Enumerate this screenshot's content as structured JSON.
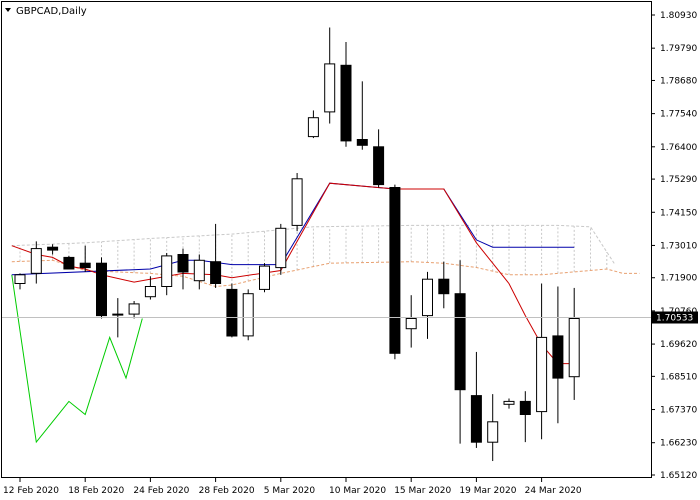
{
  "window": {
    "title": "GBPCAD,Daily",
    "menu_icon": "triangle-down-icon"
  },
  "colors": {
    "background": "#ffffff",
    "axis": "#000000",
    "grid": "#c0c0c0",
    "bull_body": "#ffffff",
    "bear_body": "#000000",
    "candle_outline": "#000000",
    "tenkan": "#cc0000",
    "kijun": "#0000aa",
    "chikou": "#00cc00",
    "senkou_a": "#e8a070",
    "senkou_b": "#c8c8c8",
    "price_tag_bg": "#000000"
  },
  "chart_data": {
    "type": "candlestick",
    "symbol": "GBPCAD",
    "timeframe": "Daily",
    "indicator": "Ichimoku Kinko Hyo",
    "ylim": [
      1.6512,
      1.8093
    ],
    "y_ticks": [
      "1.80930",
      "1.79790",
      "1.78680",
      "1.77540",
      "1.76400",
      "1.75290",
      "1.74150",
      "1.73010",
      "1.71900",
      "1.70760",
      "1.69620",
      "1.68510",
      "1.67370",
      "1.66230",
      "1.65120"
    ],
    "x_ticks": [
      {
        "index": 0,
        "label": "12 Feb 2020"
      },
      {
        "index": 4,
        "label": "18 Feb 2020"
      },
      {
        "index": 8,
        "label": "24 Feb 2020"
      },
      {
        "index": 12,
        "label": "28 Feb 2020"
      },
      {
        "index": 16,
        "label": "5 Mar 2020"
      },
      {
        "index": 20,
        "label": "10 Mar 2020"
      },
      {
        "index": 24,
        "label": "15 Mar 2020"
      },
      {
        "index": 28,
        "label": "19 Mar 2020"
      },
      {
        "index": 32,
        "label": "24 Mar 2020"
      }
    ],
    "current_price": "1.70533",
    "current_price_value": 1.70533,
    "candles": [
      {
        "o": 1.717,
        "h": 1.7205,
        "l": 1.715,
        "c": 1.72
      },
      {
        "o": 1.7205,
        "h": 1.7315,
        "l": 1.717,
        "c": 1.729
      },
      {
        "o": 1.7295,
        "h": 1.7305,
        "l": 1.727,
        "c": 1.7285
      },
      {
        "o": 1.726,
        "h": 1.7265,
        "l": 1.722,
        "c": 1.722
      },
      {
        "o": 1.724,
        "h": 1.73,
        "l": 1.721,
        "c": 1.7225
      },
      {
        "o": 1.724,
        "h": 1.726,
        "l": 1.705,
        "c": 1.706
      },
      {
        "o": 1.7065,
        "h": 1.712,
        "l": 1.6985,
        "c": 1.7065
      },
      {
        "o": 1.7065,
        "h": 1.711,
        "l": 1.705,
        "c": 1.71
      },
      {
        "o": 1.7125,
        "h": 1.7195,
        "l": 1.7115,
        "c": 1.716
      },
      {
        "o": 1.716,
        "h": 1.7275,
        "l": 1.713,
        "c": 1.7265
      },
      {
        "o": 1.727,
        "h": 1.729,
        "l": 1.715,
        "c": 1.721
      },
      {
        "o": 1.718,
        "h": 1.727,
        "l": 1.715,
        "c": 1.725
      },
      {
        "o": 1.7245,
        "h": 1.7375,
        "l": 1.7155,
        "c": 1.717
      },
      {
        "o": 1.715,
        "h": 1.717,
        "l": 1.6985,
        "c": 1.699
      },
      {
        "o": 1.699,
        "h": 1.715,
        "l": 1.6975,
        "c": 1.7135
      },
      {
        "o": 1.715,
        "h": 1.724,
        "l": 1.714,
        "c": 1.723
      },
      {
        "o": 1.7225,
        "h": 1.7375,
        "l": 1.72,
        "c": 1.736
      },
      {
        "o": 1.737,
        "h": 1.755,
        "l": 1.735,
        "c": 1.753
      },
      {
        "o": 1.7675,
        "h": 1.7765,
        "l": 1.767,
        "c": 1.774
      },
      {
        "o": 1.776,
        "h": 1.805,
        "l": 1.772,
        "c": 1.7925
      },
      {
        "o": 1.792,
        "h": 1.8,
        "l": 1.764,
        "c": 1.766
      },
      {
        "o": 1.7665,
        "h": 1.7865,
        "l": 1.763,
        "c": 1.7645
      },
      {
        "o": 1.764,
        "h": 1.77,
        "l": 1.75,
        "c": 1.751
      },
      {
        "o": 1.75,
        "h": 1.751,
        "l": 1.691,
        "c": 1.693
      },
      {
        "o": 1.7015,
        "h": 1.713,
        "l": 1.695,
        "c": 1.705
      },
      {
        "o": 1.706,
        "h": 1.721,
        "l": 1.698,
        "c": 1.7185
      },
      {
        "o": 1.7185,
        "h": 1.7245,
        "l": 1.7085,
        "c": 1.7135
      },
      {
        "o": 1.7135,
        "h": 1.725,
        "l": 1.662,
        "c": 1.6805
      },
      {
        "o": 1.6785,
        "h": 1.6935,
        "l": 1.6605,
        "c": 1.6625
      },
      {
        "o": 1.6625,
        "h": 1.679,
        "l": 1.656,
        "c": 1.6695
      },
      {
        "o": 1.6755,
        "h": 1.6775,
        "l": 1.674,
        "c": 1.6765
      },
      {
        "o": 1.6765,
        "h": 1.68,
        "l": 1.6625,
        "c": 1.672
      },
      {
        "o": 1.673,
        "h": 1.717,
        "l": 1.6635,
        "c": 1.6985
      },
      {
        "o": 1.699,
        "h": 1.716,
        "l": 1.669,
        "c": 1.6845
      },
      {
        "o": 1.685,
        "h": 1.7155,
        "l": 1.677,
        "c": 1.705
      }
    ],
    "kijun_sen": [
      {
        "x": -0.5,
        "y": 1.72
      },
      {
        "x": 8,
        "y": 1.722
      },
      {
        "x": 10,
        "y": 1.725
      },
      {
        "x": 11,
        "y": 1.725
      },
      {
        "x": 13,
        "y": 1.7235
      },
      {
        "x": 16,
        "y": 1.7235
      },
      {
        "x": 19,
        "y": 1.7515
      },
      {
        "x": 23,
        "y": 1.7495
      },
      {
        "x": 26,
        "y": 1.7495
      },
      {
        "x": 28,
        "y": 1.732
      },
      {
        "x": 29,
        "y": 1.7295
      },
      {
        "x": 34,
        "y": 1.7295
      }
    ],
    "tenkan_sen": [
      {
        "x": -0.5,
        "y": 1.73
      },
      {
        "x": 1,
        "y": 1.727
      },
      {
        "x": 2,
        "y": 1.726
      },
      {
        "x": 3,
        "y": 1.723
      },
      {
        "x": 4,
        "y": 1.722
      },
      {
        "x": 5,
        "y": 1.72
      },
      {
        "x": 7,
        "y": 1.7175
      },
      {
        "x": 10,
        "y": 1.7205
      },
      {
        "x": 12,
        "y": 1.72
      },
      {
        "x": 13,
        "y": 1.719
      },
      {
        "x": 16,
        "y": 1.7215
      },
      {
        "x": 19,
        "y": 1.7515
      },
      {
        "x": 23,
        "y": 1.7495
      },
      {
        "x": 26,
        "y": 1.7495
      },
      {
        "x": 28,
        "y": 1.731
      },
      {
        "x": 30,
        "y": 1.717
      },
      {
        "x": 31,
        "y": 1.706
      },
      {
        "x": 32,
        "y": 1.696
      },
      {
        "x": 33,
        "y": 1.6895
      },
      {
        "x": 34,
        "y": 1.6895
      }
    ],
    "chikou_span": [
      {
        "x": -0.5,
        "y": 1.72
      },
      {
        "x": 1,
        "y": 1.6625
      },
      {
        "x": 3,
        "y": 1.6765
      },
      {
        "x": 4,
        "y": 1.672
      },
      {
        "x": 5.5,
        "y": 1.6985
      },
      {
        "x": 6.5,
        "y": 1.6845
      },
      {
        "x": 7.5,
        "y": 1.705
      }
    ],
    "senkou_span_a": [
      {
        "x": -0.5,
        "y": 1.7245
      },
      {
        "x": 2,
        "y": 1.725
      },
      {
        "x": 4,
        "y": 1.7215
      },
      {
        "x": 8,
        "y": 1.7205
      },
      {
        "x": 10,
        "y": 1.7195
      },
      {
        "x": 12,
        "y": 1.716
      },
      {
        "x": 13,
        "y": 1.7165
      },
      {
        "x": 16,
        "y": 1.7205
      },
      {
        "x": 19,
        "y": 1.724
      },
      {
        "x": 24,
        "y": 1.7245
      },
      {
        "x": 26,
        "y": 1.724
      },
      {
        "x": 28,
        "y": 1.7225
      },
      {
        "x": 30,
        "y": 1.72
      },
      {
        "x": 32,
        "y": 1.72
      },
      {
        "x": 34,
        "y": 1.721
      },
      {
        "x": 36,
        "y": 1.722
      },
      {
        "x": 37,
        "y": 1.7205
      },
      {
        "x": 38,
        "y": 1.7205
      }
    ],
    "senkou_span_b": [
      {
        "x": -0.5,
        "y": 1.73
      },
      {
        "x": 4,
        "y": 1.731
      },
      {
        "x": 8,
        "y": 1.7325
      },
      {
        "x": 13,
        "y": 1.734
      },
      {
        "x": 18,
        "y": 1.7365
      },
      {
        "x": 24,
        "y": 1.737
      },
      {
        "x": 30,
        "y": 1.737
      },
      {
        "x": 33,
        "y": 1.737
      },
      {
        "x": 35,
        "y": 1.7365
      },
      {
        "x": 36.5,
        "y": 1.7235
      }
    ]
  }
}
